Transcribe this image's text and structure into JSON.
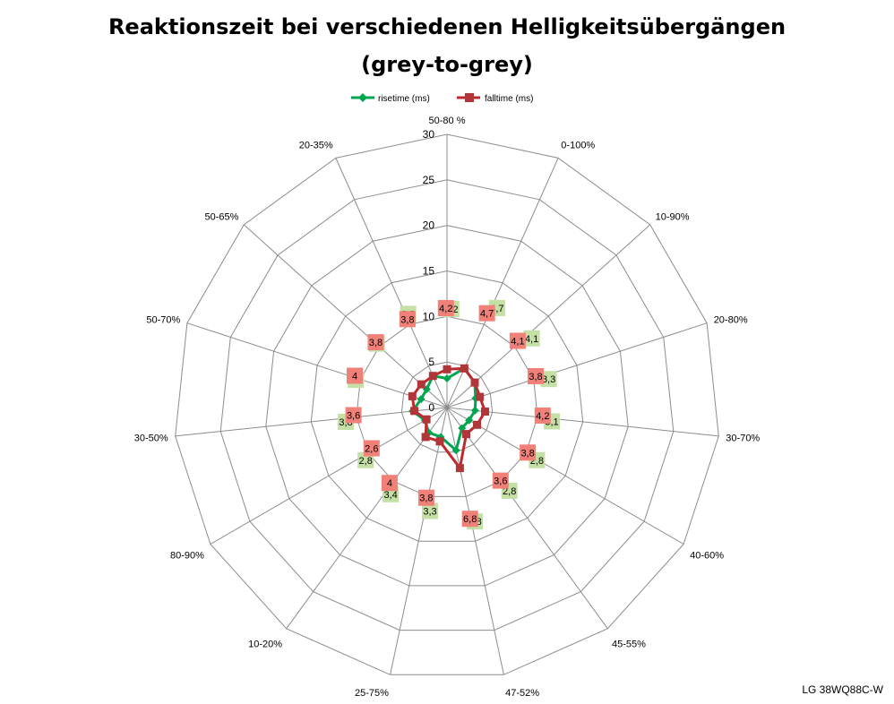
{
  "chart_data": {
    "type": "radar",
    "title_line1": "Reaktionszeit bei verschiedenen Helligkeitsübergängen",
    "title_line2": "(grey-to-grey)",
    "categories": [
      "50-80 %",
      "0-100%",
      "10-90%",
      "20-80%",
      "30-70%",
      "40-60%",
      "45-55%",
      "47-52%",
      "25-75%",
      "10-20%",
      "80-90%",
      "30-50%",
      "50-70%",
      "50-65%",
      "20-35%"
    ],
    "rlim": [
      0,
      30
    ],
    "ticks": [
      0,
      5,
      10,
      15,
      20,
      25,
      30
    ],
    "tick_labels": [
      "0",
      "5",
      "10",
      "15",
      "20",
      "25",
      "30"
    ],
    "grid": true,
    "legend_position": "top",
    "series": [
      {
        "name": "risetime (ms)",
        "color": "#00A550",
        "label_bg": "#C4E0A4",
        "marker": "diamond",
        "values": [
          3.2,
          4.7,
          4.1,
          3.3,
          3.1,
          2.8,
          2.8,
          4.8,
          3.3,
          3.4,
          2.8,
          3.8,
          3.0,
          3.0,
          3.8
        ],
        "labels": [
          "3,2",
          "4,7",
          "4,1",
          "3,3",
          "3,1",
          "2,8",
          "2,8",
          "4,8",
          "3,3",
          "3,4",
          "2,8",
          "3,8",
          "3",
          "3",
          "3,8"
        ]
      },
      {
        "name": "falltime (ms)",
        "color": "#C0282D",
        "label_bg": "#F08078",
        "marker": "square",
        "values": [
          4.2,
          4.7,
          4.1,
          3.8,
          4.2,
          3.8,
          3.6,
          6.8,
          3.8,
          4.0,
          2.6,
          3.6,
          4.0,
          3.8,
          3.8
        ],
        "labels": [
          "4,2",
          "4,7",
          "4,1",
          "3,8",
          "4,2",
          "3,8",
          "3,6",
          "6,8",
          "3,8",
          "4",
          "2,6",
          "3,6",
          "4",
          "3,8",
          "3,8"
        ]
      }
    ]
  },
  "watermark": "LG 38WQ88C-W"
}
